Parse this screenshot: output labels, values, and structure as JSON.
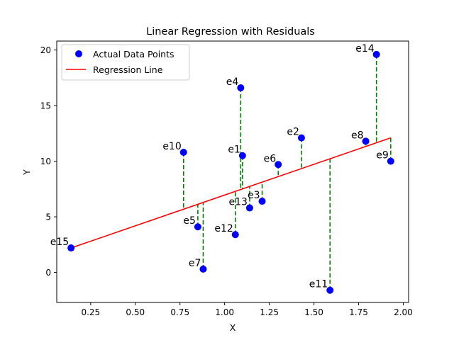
{
  "chart_data": {
    "type": "scatter",
    "title": "Linear Regression with Residuals",
    "xlabel": "X",
    "ylabel": "Y",
    "xlim": [
      0.06,
      2.03
    ],
    "ylim": [
      -2.7,
      20.8
    ],
    "xticks": [
      0.25,
      0.5,
      0.75,
      1.0,
      1.25,
      1.5,
      1.75,
      2.0
    ],
    "xtick_labels": [
      "0.25",
      "0.50",
      "0.75",
      "1.00",
      "1.25",
      "1.50",
      "1.75",
      "2.00"
    ],
    "yticks": [
      0,
      5,
      10,
      15,
      20
    ],
    "ytick_labels": [
      "0",
      "5",
      "10",
      "15",
      "20"
    ],
    "grid": false,
    "legend": {
      "position": "top-left",
      "entries": [
        {
          "label": "Actual Data Points",
          "marker": "circle",
          "color": "#0000ff"
        },
        {
          "label": "Regression Line",
          "marker": "line",
          "color": "#ff0000"
        }
      ]
    },
    "regression_line": {
      "x": [
        0.14,
        1.93
      ],
      "y": [
        2.2,
        12.1
      ],
      "color": "#ff0000"
    },
    "points": [
      {
        "label": "e1",
        "x": 1.1,
        "y": 10.5
      },
      {
        "label": "e2",
        "x": 1.43,
        "y": 12.1
      },
      {
        "label": "e3",
        "x": 1.21,
        "y": 6.4
      },
      {
        "label": "e4",
        "x": 1.09,
        "y": 16.6
      },
      {
        "label": "e5",
        "x": 0.85,
        "y": 4.1
      },
      {
        "label": "e6",
        "x": 1.3,
        "y": 9.7
      },
      {
        "label": "e7",
        "x": 0.88,
        "y": 0.3
      },
      {
        "label": "e8",
        "x": 1.79,
        "y": 11.8
      },
      {
        "label": "e9",
        "x": 1.93,
        "y": 10.0
      },
      {
        "label": "e10",
        "x": 0.77,
        "y": 10.8
      },
      {
        "label": "e11",
        "x": 1.59,
        "y": -1.6
      },
      {
        "label": "e12",
        "x": 1.06,
        "y": 3.4
      },
      {
        "label": "e13",
        "x": 1.14,
        "y": 5.8
      },
      {
        "label": "e14",
        "x": 1.85,
        "y": 19.6
      },
      {
        "label": "e15",
        "x": 0.14,
        "y": 2.2
      }
    ],
    "residual_color": "#008000",
    "point_color": "#0000ff"
  }
}
